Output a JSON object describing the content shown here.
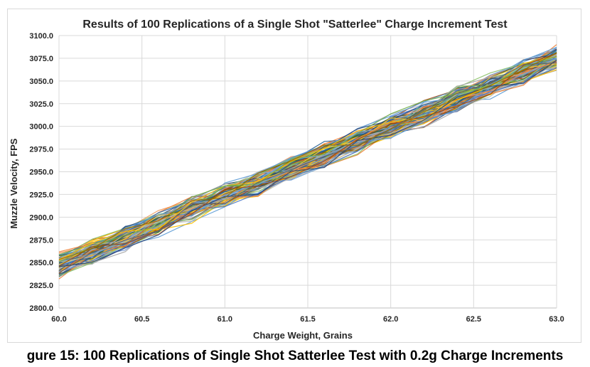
{
  "chart_data": {
    "type": "line",
    "title": "Results of 100 Replications of a Single Shot \"Satterlee\" Charge Increment Test",
    "xlabel": "Charge Weight, Grains",
    "ylabel": "Muzzle Velocity, FPS",
    "xlim": [
      60.0,
      63.0
    ],
    "ylim": [
      2800.0,
      3100.0
    ],
    "x_ticks": [
      "60.0",
      "60.5",
      "61.0",
      "61.5",
      "62.0",
      "62.5",
      "63.0"
    ],
    "y_ticks": [
      "2800.0",
      "2825.0",
      "2850.0",
      "2875.0",
      "2900.0",
      "2925.0",
      "2950.0",
      "2975.0",
      "3000.0",
      "3025.0",
      "3050.0",
      "3075.0",
      "3100.0"
    ],
    "x": [
      60.0,
      60.2,
      60.4,
      60.6,
      60.8,
      61.0,
      61.2,
      61.4,
      61.6,
      61.8,
      62.0,
      62.2,
      62.4,
      62.6,
      62.8,
      63.0
    ],
    "mean_line": [
      2847,
      2862,
      2877,
      2893,
      2908,
      2923,
      2938,
      2954,
      2969,
      2984,
      2999,
      3014,
      3030,
      3045,
      3060,
      3075
    ],
    "replications": 100,
    "grid": true,
    "legend": "none"
  },
  "caption": "gure 15: 100 Replications of Single Shot Satterlee Test with 0.2g Charge Increments"
}
